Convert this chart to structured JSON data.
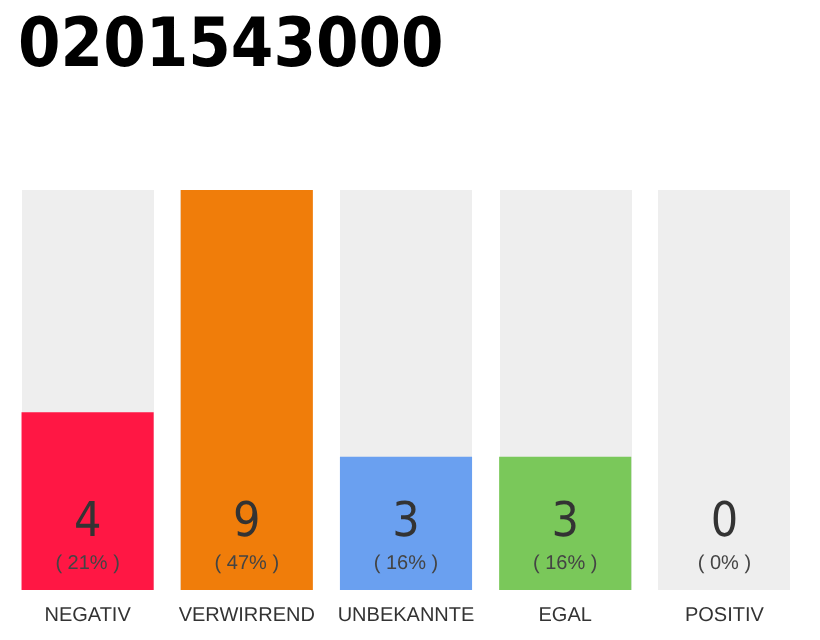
{
  "chart_data": {
    "type": "bar",
    "title": "0201543000",
    "categories": [
      "NEGATIV",
      "VERWIRREND",
      "UNBEKANNTE",
      "EGAL",
      "POSITIV"
    ],
    "values": [
      4,
      9,
      3,
      3,
      0
    ],
    "colors": [
      "#ff1744",
      "#f07d0a",
      "#6aa0f0",
      "#7ac85a",
      "#cccccc"
    ],
    "data_labels": true,
    "annotations": [
      "( 21% )",
      "( 47% )",
      "( 16% )",
      "( 16% )",
      "( 0% )"
    ]
  }
}
